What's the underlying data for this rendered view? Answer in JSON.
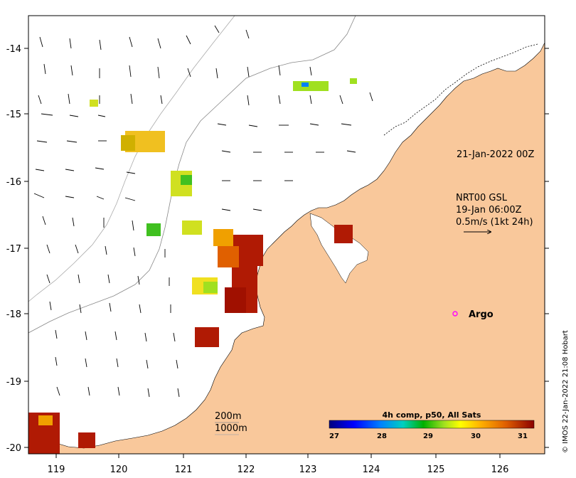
{
  "map": {
    "x_ticks": [
      "119",
      "120",
      "121",
      "122",
      "123",
      "124",
      "125",
      "126"
    ],
    "y_ticks": [
      "-14",
      "-15",
      "-16",
      "-17",
      "-18",
      "-19",
      "-20"
    ],
    "timestamp_label": "21-Jan-2022 00Z",
    "vector_legend": {
      "line1": "NRT00 GSL",
      "line2": "19-Jan 06:00Z",
      "line3": "0.5m/s (1kt 24h)"
    },
    "argo_label": "Argo",
    "depth_labels": [
      "200m",
      "1000m"
    ],
    "colorbar": {
      "title": "4h comp, p50, All Sats",
      "ticks": [
        "27",
        "28",
        "29",
        "30",
        "31"
      ],
      "range": [
        27,
        31.5
      ]
    },
    "credit": "© IMOS 22-Jan-2022 21:08 Hobart",
    "colors": {
      "land": "#f9c89b",
      "sst_warm": "#b01a04",
      "sst_mid": "#f0a000",
      "sst_cool": "#7ed321",
      "argo": "#ff00ff"
    }
  }
}
